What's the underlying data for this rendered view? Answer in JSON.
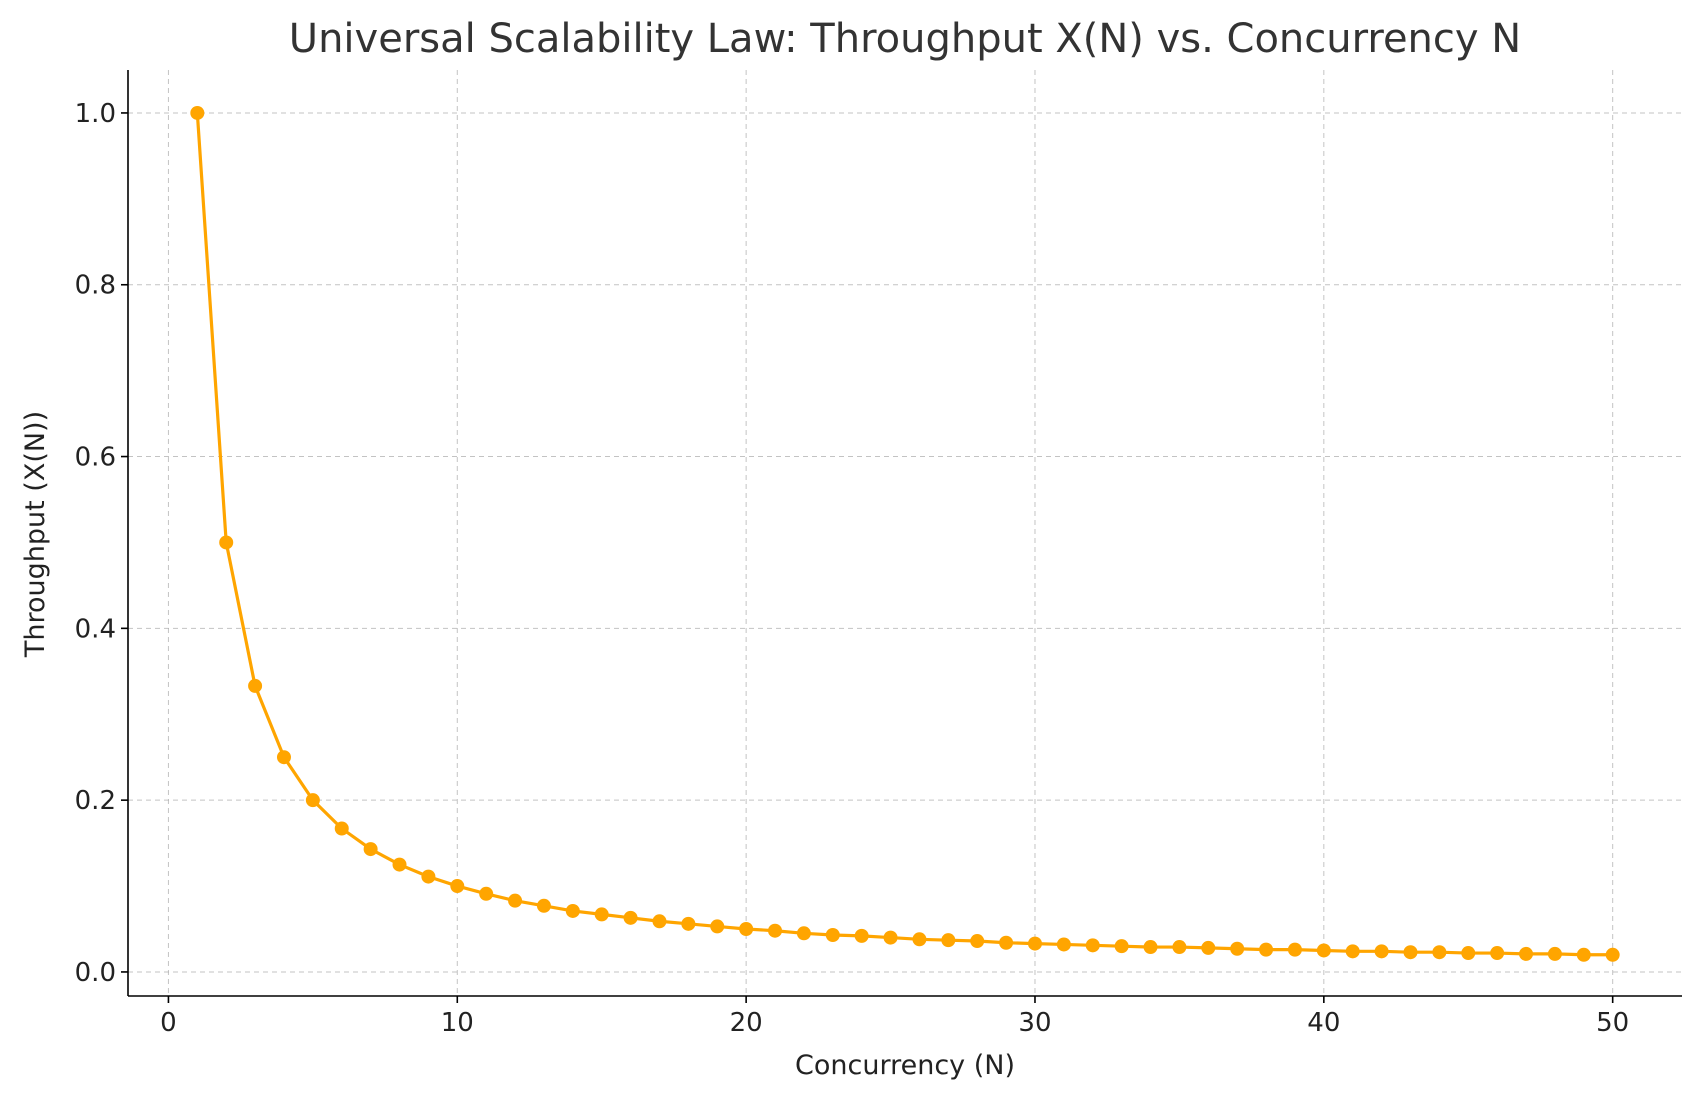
{
  "chart_data": {
    "type": "line",
    "title": "Universal Scalability Law: Throughput X(N) vs. Concurrency N",
    "xlabel": "Concurrency (N)",
    "ylabel": "Throughput (X(N))",
    "xlim": [
      -1.4,
      52.4
    ],
    "ylim": [
      -0.028,
      1.05
    ],
    "xticks": [
      0,
      10,
      20,
      30,
      40,
      50
    ],
    "yticks": [
      0.0,
      0.2,
      0.4,
      0.6,
      0.8,
      1.0
    ],
    "xtick_labels": [
      "0",
      "10",
      "20",
      "30",
      "40",
      "50"
    ],
    "ytick_labels": [
      "0.0",
      "0.2",
      "0.4",
      "0.6",
      "0.8",
      "1.0"
    ],
    "grid": true,
    "line_color": "#FFA500",
    "x": [
      1,
      2,
      3,
      4,
      5,
      6,
      7,
      8,
      9,
      10,
      11,
      12,
      13,
      14,
      15,
      16,
      17,
      18,
      19,
      20,
      21,
      22,
      23,
      24,
      25,
      26,
      27,
      28,
      29,
      30,
      31,
      32,
      33,
      34,
      35,
      36,
      37,
      38,
      39,
      40,
      41,
      42,
      43,
      44,
      45,
      46,
      47,
      48,
      49,
      50
    ],
    "series": [
      {
        "values": [
          1.0,
          0.5,
          0.333,
          0.25,
          0.2,
          0.167,
          0.143,
          0.125,
          0.111,
          0.1,
          0.091,
          0.083,
          0.077,
          0.071,
          0.067,
          0.063,
          0.059,
          0.056,
          0.053,
          0.05,
          0.048,
          0.045,
          0.043,
          0.042,
          0.04,
          0.038,
          0.037,
          0.036,
          0.034,
          0.033,
          0.032,
          0.031,
          0.03,
          0.029,
          0.029,
          0.028,
          0.027,
          0.026,
          0.026,
          0.025,
          0.024,
          0.024,
          0.023,
          0.023,
          0.022,
          0.022,
          0.021,
          0.021,
          0.02,
          0.02
        ]
      }
    ]
  }
}
